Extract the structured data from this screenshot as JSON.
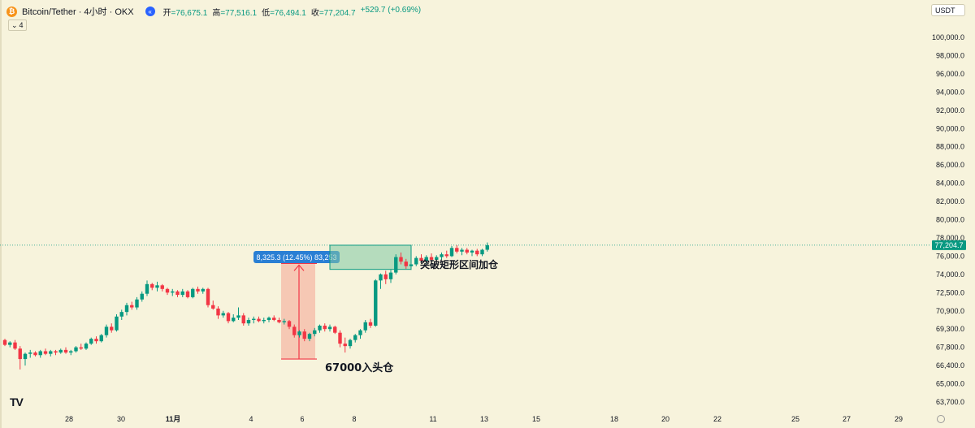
{
  "header": {
    "logo_glyph": "₿",
    "symbol": "Bitcoin/Tether · 4小时 · OKX",
    "collapse_icon": "chevrons-left-icon",
    "ohlc": {
      "open_label": "开",
      "open": "=76,675.1",
      "high_label": "高",
      "high": "=77,516.1",
      "low_label": "低",
      "low": "=76,494.1",
      "close_label": "收",
      "close": "=77,204.7",
      "change": "+529.7 (+0.69%)"
    }
  },
  "indicator_toggle": {
    "icon": "chevron-down-icon",
    "count": "4"
  },
  "currency": "USDT",
  "watermark": "TV",
  "colors": {
    "background": "#f7f3dc",
    "up": "#089981",
    "down": "#f23645",
    "axis_text": "#131722",
    "price_tag": "#089981",
    "measure_label": "#2a7fd4"
  },
  "chart_data": {
    "type": "candlestick",
    "price_axis_ticks": [
      "100,000.0",
      "98,000.0",
      "96,000.0",
      "94,000.0",
      "92,000.0",
      "90,000.0",
      "88,000.0",
      "86,000.0",
      "84,000.0",
      "82,000.0",
      "80,000.0",
      "78,000.0",
      "76,000.0",
      "74,000.0",
      "72,500.0",
      "70,900.0",
      "69,300.0",
      "67,800.0",
      "66,400.0",
      "65,000.0",
      "63,700.0"
    ],
    "time_axis_ticks": [
      "28",
      "30",
      "11月",
      "4",
      "6",
      "8",
      "11",
      "13",
      "15",
      "18",
      "20",
      "22",
      "25",
      "27",
      "29"
    ],
    "last_price": "77,204.7",
    "last_price_value": 77204.7,
    "annotations": [
      {
        "kind": "measure_range",
        "label": "8,325.3 (12.45%) 83,253",
        "from_price": 66900,
        "to_price": 75200
      },
      {
        "kind": "text",
        "label": "67000入头仓"
      },
      {
        "kind": "rectangle",
        "from_price": 74550,
        "to_price": 77200
      },
      {
        "kind": "text",
        "label": "突破矩形区间加仓"
      }
    ],
    "candles": [
      [
        68.4,
        68.5,
        67.9,
        68.0
      ],
      [
        68.0,
        68.3,
        67.8,
        68.2
      ],
      [
        68.2,
        68.4,
        67.6,
        67.7
      ],
      [
        67.7,
        67.9,
        66.1,
        66.9
      ],
      [
        66.9,
        67.4,
        66.4,
        67.3
      ],
      [
        67.3,
        67.6,
        67.0,
        67.4
      ],
      [
        67.4,
        67.5,
        67.1,
        67.2
      ],
      [
        67.2,
        67.6,
        67.0,
        67.5
      ],
      [
        67.5,
        67.7,
        67.2,
        67.3
      ],
      [
        67.3,
        67.6,
        67.1,
        67.5
      ],
      [
        67.5,
        67.6,
        67.2,
        67.4
      ],
      [
        67.4,
        67.7,
        67.3,
        67.6
      ],
      [
        67.6,
        67.8,
        67.3,
        67.4
      ],
      [
        67.4,
        67.6,
        67.2,
        67.5
      ],
      [
        67.5,
        67.9,
        67.4,
        67.8
      ],
      [
        67.8,
        68.1,
        67.6,
        67.7
      ],
      [
        67.7,
        68.2,
        67.6,
        68.1
      ],
      [
        68.1,
        68.6,
        68.0,
        68.5
      ],
      [
        68.5,
        68.7,
        68.1,
        68.3
      ],
      [
        68.3,
        68.9,
        68.2,
        68.8
      ],
      [
        68.8,
        69.7,
        68.6,
        69.5
      ],
      [
        69.5,
        69.8,
        69.0,
        69.2
      ],
      [
        69.2,
        70.6,
        69.1,
        70.4
      ],
      [
        70.4,
        71.0,
        70.1,
        70.8
      ],
      [
        70.8,
        71.6,
        70.5,
        71.4
      ],
      [
        71.4,
        71.7,
        71.0,
        71.2
      ],
      [
        71.2,
        72.1,
        71.0,
        71.9
      ],
      [
        71.9,
        72.6,
        71.7,
        72.4
      ],
      [
        72.4,
        73.5,
        72.2,
        73.2
      ],
      [
        73.2,
        73.3,
        72.7,
        72.9
      ],
      [
        72.9,
        73.4,
        72.6,
        73.1
      ],
      [
        73.1,
        73.2,
        72.6,
        72.8
      ],
      [
        72.8,
        72.9,
        72.3,
        72.5
      ],
      [
        72.5,
        72.8,
        72.2,
        72.6
      ],
      [
        72.6,
        72.7,
        72.1,
        72.3
      ],
      [
        72.3,
        72.8,
        72.1,
        72.6
      ],
      [
        72.6,
        72.7,
        72.0,
        72.1
      ],
      [
        72.1,
        72.9,
        72.0,
        72.8
      ],
      [
        72.8,
        73.0,
        72.4,
        72.6
      ],
      [
        72.6,
        72.9,
        72.4,
        72.8
      ],
      [
        72.8,
        72.9,
        71.2,
        71.4
      ],
      [
        71.4,
        71.8,
        71.0,
        71.1
      ],
      [
        71.1,
        71.3,
        70.2,
        70.5
      ],
      [
        70.5,
        70.9,
        70.3,
        70.7
      ],
      [
        70.7,
        70.8,
        69.8,
        70.0
      ],
      [
        70.0,
        70.6,
        69.9,
        70.3
      ],
      [
        70.3,
        71.2,
        70.1,
        70.5
      ],
      [
        70.5,
        70.7,
        69.6,
        69.8
      ],
      [
        69.8,
        70.3,
        69.6,
        70.1
      ],
      [
        70.1,
        70.4,
        69.8,
        70.2
      ],
      [
        70.2,
        70.4,
        69.9,
        70.0
      ],
      [
        70.0,
        70.3,
        69.8,
        70.1
      ],
      [
        70.1,
        70.4,
        69.9,
        70.3
      ],
      [
        70.3,
        70.5,
        70.0,
        70.1
      ],
      [
        70.1,
        70.3,
        69.8,
        69.9
      ],
      [
        69.9,
        70.2,
        69.7,
        70.0
      ],
      [
        70.0,
        70.1,
        69.3,
        69.5
      ],
      [
        69.5,
        69.7,
        68.6,
        68.8
      ],
      [
        68.8,
        69.2,
        68.6,
        69.1
      ],
      [
        69.1,
        69.3,
        68.3,
        68.5
      ],
      [
        68.5,
        69.0,
        68.3,
        68.9
      ],
      [
        68.9,
        69.4,
        68.7,
        69.2
      ],
      [
        69.2,
        69.7,
        69.0,
        69.6
      ],
      [
        69.6,
        69.8,
        69.1,
        69.3
      ],
      [
        69.3,
        69.7,
        69.1,
        69.5
      ],
      [
        69.5,
        69.6,
        68.9,
        69.0
      ],
      [
        69.0,
        69.2,
        67.8,
        68.1
      ],
      [
        68.1,
        68.6,
        67.4,
        67.9
      ],
      [
        67.9,
        68.5,
        67.7,
        68.4
      ],
      [
        68.4,
        68.9,
        68.2,
        68.8
      ],
      [
        68.8,
        69.3,
        68.5,
        69.2
      ],
      [
        69.2,
        70.1,
        69.0,
        69.9
      ],
      [
        69.9,
        70.2,
        69.4,
        69.6
      ],
      [
        69.6,
        73.6,
        69.5,
        73.5
      ],
      [
        73.5,
        74.1,
        72.8,
        74.0
      ],
      [
        74.0,
        74.4,
        73.2,
        73.6
      ],
      [
        73.6,
        74.5,
        73.3,
        74.2
      ],
      [
        74.2,
        76.2,
        74.0,
        75.9
      ],
      [
        75.9,
        76.4,
        75.1,
        75.4
      ],
      [
        75.4,
        75.7,
        74.6,
        74.9
      ],
      [
        74.9,
        75.2,
        74.5,
        75.1
      ],
      [
        75.1,
        76.0,
        74.9,
        75.8
      ],
      [
        75.8,
        76.2,
        75.3,
        75.5
      ],
      [
        75.5,
        76.1,
        75.2,
        75.9
      ],
      [
        75.9,
        76.3,
        75.4,
        75.6
      ],
      [
        75.6,
        76.1,
        75.3,
        75.9
      ],
      [
        75.9,
        76.4,
        75.6,
        76.2
      ],
      [
        76.2,
        76.6,
        75.8,
        76.0
      ],
      [
        76.0,
        77.1,
        75.9,
        76.9
      ],
      [
        76.9,
        77.2,
        76.3,
        76.5
      ],
      [
        76.5,
        76.9,
        76.1,
        76.7
      ],
      [
        76.7,
        76.9,
        76.2,
        76.4
      ],
      [
        76.4,
        76.7,
        76.0,
        76.6
      ],
      [
        76.6,
        76.8,
        76.0,
        76.2
      ],
      [
        76.2,
        76.8,
        76.0,
        76.7
      ],
      [
        76.7,
        77.5,
        76.5,
        77.2
      ]
    ]
  }
}
